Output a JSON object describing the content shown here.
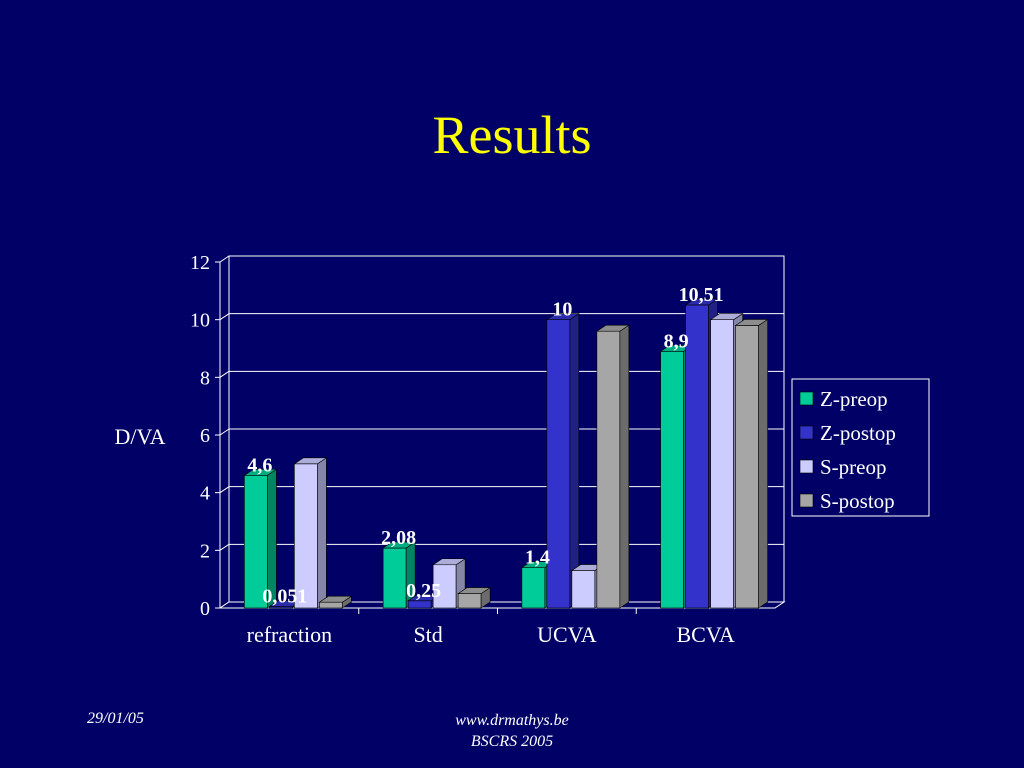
{
  "slide": {
    "title": "Results"
  },
  "footer": {
    "date": "29/01/05",
    "website": "www.drmathys.be",
    "event": "BSCRS 2005"
  },
  "colors": {
    "background": "#000066",
    "title": "#ffff00",
    "text": "#ffffff"
  },
  "chart_data": {
    "type": "bar",
    "title": "",
    "xlabel": "",
    "ylabel": "D/VA",
    "ylim": [
      0,
      12
    ],
    "yticks": [
      0,
      2,
      4,
      6,
      8,
      10,
      12
    ],
    "categories": [
      "refraction",
      "Std",
      "UCVA",
      "BCVA"
    ],
    "legend_position": "right",
    "grid": true,
    "three_d": true,
    "series": [
      {
        "name": "Z-preop",
        "color": "#00cc99",
        "values": [
          4.6,
          2.08,
          1.4,
          8.9
        ],
        "labels": [
          "4,6",
          "2,08",
          "1,4",
          "8,9"
        ]
      },
      {
        "name": "Z-postop",
        "color": "#3333cc",
        "values": [
          0.051,
          0.25,
          10,
          10.51
        ],
        "labels": [
          "0,051",
          "0,25",
          "10",
          "10,51"
        ]
      },
      {
        "name": "S-preop",
        "color": "#ccccff",
        "values": [
          5,
          1.5,
          1.3,
          10
        ],
        "labels": [
          "",
          "",
          "",
          ""
        ]
      },
      {
        "name": "S-postop",
        "color": "#a6a6a6",
        "values": [
          0.2,
          0.5,
          9.6,
          9.8
        ],
        "labels": [
          "",
          "",
          "",
          ""
        ]
      }
    ]
  }
}
